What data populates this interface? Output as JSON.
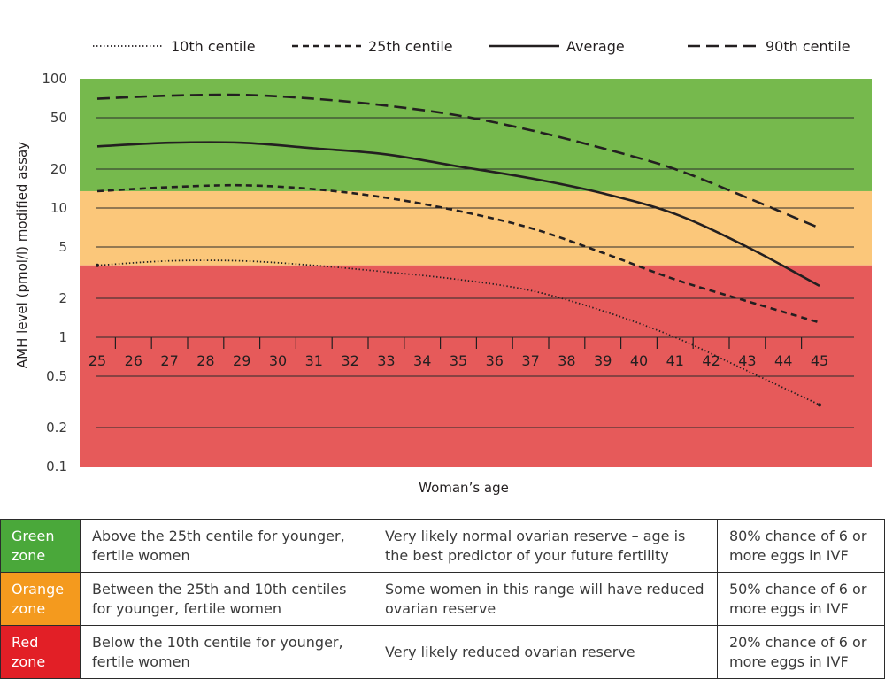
{
  "chart_data": {
    "type": "line",
    "xlabel": "Woman’s age",
    "ylabel": "AMH level (pmol/l) modified assay",
    "yscale": "log",
    "ylim": [
      0.1,
      100
    ],
    "xlim": [
      25,
      45
    ],
    "y_ticks": [
      "100",
      "50",
      "20",
      "10",
      "5",
      "2",
      "1",
      "0.5",
      "0.2",
      "0.1"
    ],
    "y_tick_values": [
      100,
      50,
      20,
      10,
      5,
      2,
      1,
      0.5,
      0.2,
      0.1
    ],
    "x_ticks": [
      "25",
      "26",
      "27",
      "28",
      "29",
      "30",
      "31",
      "32",
      "33",
      "34",
      "35",
      "36",
      "37",
      "38",
      "39",
      "40",
      "41",
      "42",
      "43",
      "44",
      "45"
    ],
    "x": [
      25,
      27,
      29,
      31,
      33,
      35,
      37,
      39,
      41,
      43,
      45
    ],
    "grid": true,
    "legend_position": "top",
    "zones": [
      {
        "name": "Green",
        "color": "#76b94d",
        "from": 13.5,
        "to": 100
      },
      {
        "name": "Orange",
        "color": "#fbc77a",
        "from": 3.6,
        "to": 13.5
      },
      {
        "name": "Red",
        "color": "#e65a5a",
        "from": 0.1,
        "to": 3.6
      }
    ],
    "series": [
      {
        "name": "10th centile",
        "style": "dotted",
        "values": [
          3.6,
          3.9,
          3.9,
          3.6,
          3.2,
          2.8,
          2.3,
          1.6,
          1.0,
          0.55,
          0.3
        ]
      },
      {
        "name": "25th centile",
        "style": "short-dash",
        "values": [
          13.5,
          14.5,
          15.0,
          14.0,
          12.0,
          9.5,
          7.0,
          4.5,
          2.8,
          1.9,
          1.3
        ]
      },
      {
        "name": "Average",
        "style": "solid",
        "values": [
          30,
          32,
          32,
          29,
          26,
          21,
          17,
          13,
          9.0,
          5.0,
          2.5
        ]
      },
      {
        "name": "90th centile",
        "style": "long-dash",
        "values": [
          70,
          74,
          75,
          70,
          62,
          52,
          40,
          29,
          20,
          12,
          7.0
        ]
      }
    ]
  },
  "colors": {
    "green": "#76b94d",
    "orange": "#fbc77a",
    "red": "#e65a5a",
    "green_zone_cell": "#4aa83a",
    "orange_zone_cell": "#f49a1e",
    "red_zone_cell": "#e21f26",
    "line": "#231f20"
  },
  "table": {
    "rows": [
      {
        "zone": "Green zone",
        "definition": "Above the 25th centile for younger, fertile women",
        "meaning": "Very likely normal ovarian reserve – age is the best predictor of your future fertility",
        "chance": "80% chance of 6 or more eggs in IVF"
      },
      {
        "zone": "Orange zone",
        "definition": "Between the 25th and 10th centiles for younger, fertile women",
        "meaning": "Some women in this range will have reduced ovarian reserve",
        "chance": "50% chance of 6 or more eggs in IVF"
      },
      {
        "zone": "Red zone",
        "definition": "Below the 10th centile for younger, fertile women",
        "meaning": "Very likely reduced ovarian reserve",
        "chance": "20% chance of 6 or more eggs in IVF"
      }
    ]
  }
}
